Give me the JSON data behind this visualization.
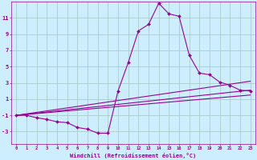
{
  "xlabel": "Windchill (Refroidissement éolien,°C)",
  "background_color": "#cceeff",
  "grid_color": "#aacccc",
  "line_color": "#990099",
  "x_ticks": [
    0,
    1,
    2,
    3,
    4,
    5,
    6,
    7,
    8,
    9,
    10,
    11,
    12,
    13,
    14,
    15,
    16,
    17,
    18,
    19,
    20,
    21,
    22,
    23
  ],
  "y_ticks": [
    -3,
    -1,
    1,
    3,
    5,
    7,
    9,
    11
  ],
  "xlim": [
    -0.5,
    23.5
  ],
  "ylim": [
    -4.5,
    13.0
  ],
  "series": [
    {
      "x": [
        0,
        1,
        2,
        3,
        4,
        5,
        6,
        7,
        8,
        9,
        10,
        11,
        12,
        13,
        14,
        15,
        16,
        17,
        18,
        19,
        20,
        21,
        22,
        23
      ],
      "y": [
        -1,
        -1,
        -1.3,
        -1.5,
        -1.8,
        -1.9,
        -2.5,
        -2.7,
        -3.2,
        -3.2,
        2.0,
        5.5,
        9.4,
        10.2,
        12.8,
        11.5,
        11.2,
        6.4,
        4.2,
        4.0,
        3.1,
        2.7,
        2.1,
        2.0
      ],
      "marker": "D",
      "markersize": 2.0
    },
    {
      "x": [
        0,
        23
      ],
      "y": [
        -1,
        3.2
      ],
      "marker": null
    },
    {
      "x": [
        0,
        23
      ],
      "y": [
        -1,
        2.1
      ],
      "marker": null
    },
    {
      "x": [
        0,
        23
      ],
      "y": [
        -1,
        1.5
      ],
      "marker": null
    }
  ]
}
